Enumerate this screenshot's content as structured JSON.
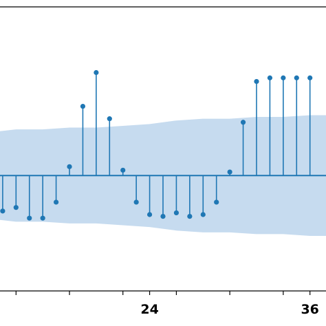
{
  "chart_data": {
    "type": "stem",
    "xlim": [
      12.8,
      37.2
    ],
    "ylim": [
      -0.65,
      0.95
    ],
    "x_ticks": [
      14,
      18,
      22,
      24,
      26,
      30,
      34,
      36
    ],
    "x_tick_labels": [
      {
        "x": 24,
        "label": "24"
      },
      {
        "x": 36,
        "label": "36"
      }
    ],
    "baseline": 0,
    "series": [
      {
        "x": [
          13,
          14,
          15,
          16,
          17,
          18,
          19,
          20,
          21,
          22,
          23,
          24,
          25,
          26,
          27,
          28,
          29,
          30,
          31,
          32,
          33,
          34,
          35,
          36
        ],
        "values": [
          -0.2,
          -0.18,
          -0.24,
          -0.24,
          -0.15,
          0.05,
          0.39,
          0.58,
          0.32,
          0.03,
          -0.15,
          -0.22,
          -0.23,
          -0.21,
          -0.23,
          -0.22,
          -0.15,
          0.02,
          0.3,
          0.53,
          0.55,
          0.55,
          0.55,
          0.55
        ]
      }
    ],
    "confidence_band": {
      "x": [
        12.8,
        14,
        16,
        18,
        20,
        22,
        24,
        26,
        28,
        30,
        32,
        34,
        36,
        37.2
      ],
      "upper": [
        0.25,
        0.26,
        0.26,
        0.27,
        0.27,
        0.28,
        0.29,
        0.31,
        0.32,
        0.32,
        0.33,
        0.33,
        0.34,
        0.34
      ],
      "lower": [
        -0.25,
        -0.26,
        -0.26,
        -0.27,
        -0.27,
        -0.28,
        -0.29,
        -0.31,
        -0.32,
        -0.32,
        -0.33,
        -0.33,
        -0.34,
        -0.34
      ]
    },
    "colors": {
      "stem": "#1f77b4",
      "band": "#c6dbef",
      "axis": "#000000"
    },
    "grid": false
  }
}
